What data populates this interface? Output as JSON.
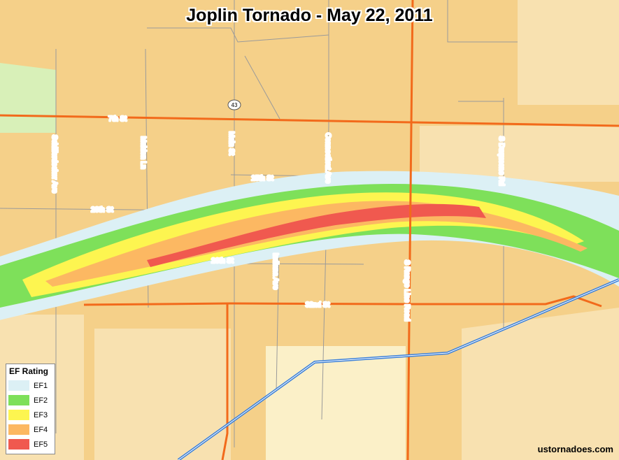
{
  "title": "Joplin Tornado - May 22, 2011",
  "credit": "ustornadoes.com",
  "route_shield": "43",
  "streets": {
    "e_w": [
      "7th St",
      "15th St",
      "20th St",
      "26th St",
      "32nd St"
    ],
    "n_s": [
      "Schifferdecker Ave",
      "Maiden Ln",
      "Main St",
      "Connecticut Ave",
      "Indiana Ave",
      "S Range Line Road",
      "S Duquesne Rd"
    ]
  },
  "legend": {
    "title": "EF Rating",
    "items": [
      {
        "label": "EF1",
        "color": "#dcf0f5"
      },
      {
        "label": "EF2",
        "color": "#7ee05a"
      },
      {
        "label": "EF3",
        "color": "#fdf550"
      },
      {
        "label": "EF4",
        "color": "#fcb862"
      },
      {
        "label": "EF5",
        "color": "#f0594f"
      }
    ]
  },
  "colors": {
    "land": "#f5d089",
    "land_light": "#f8e1b0",
    "land_pale": "#fbf0c8",
    "park": "#d8f0b8",
    "major_road": "#f26a1b",
    "rail": "#3a7fd8"
  }
}
